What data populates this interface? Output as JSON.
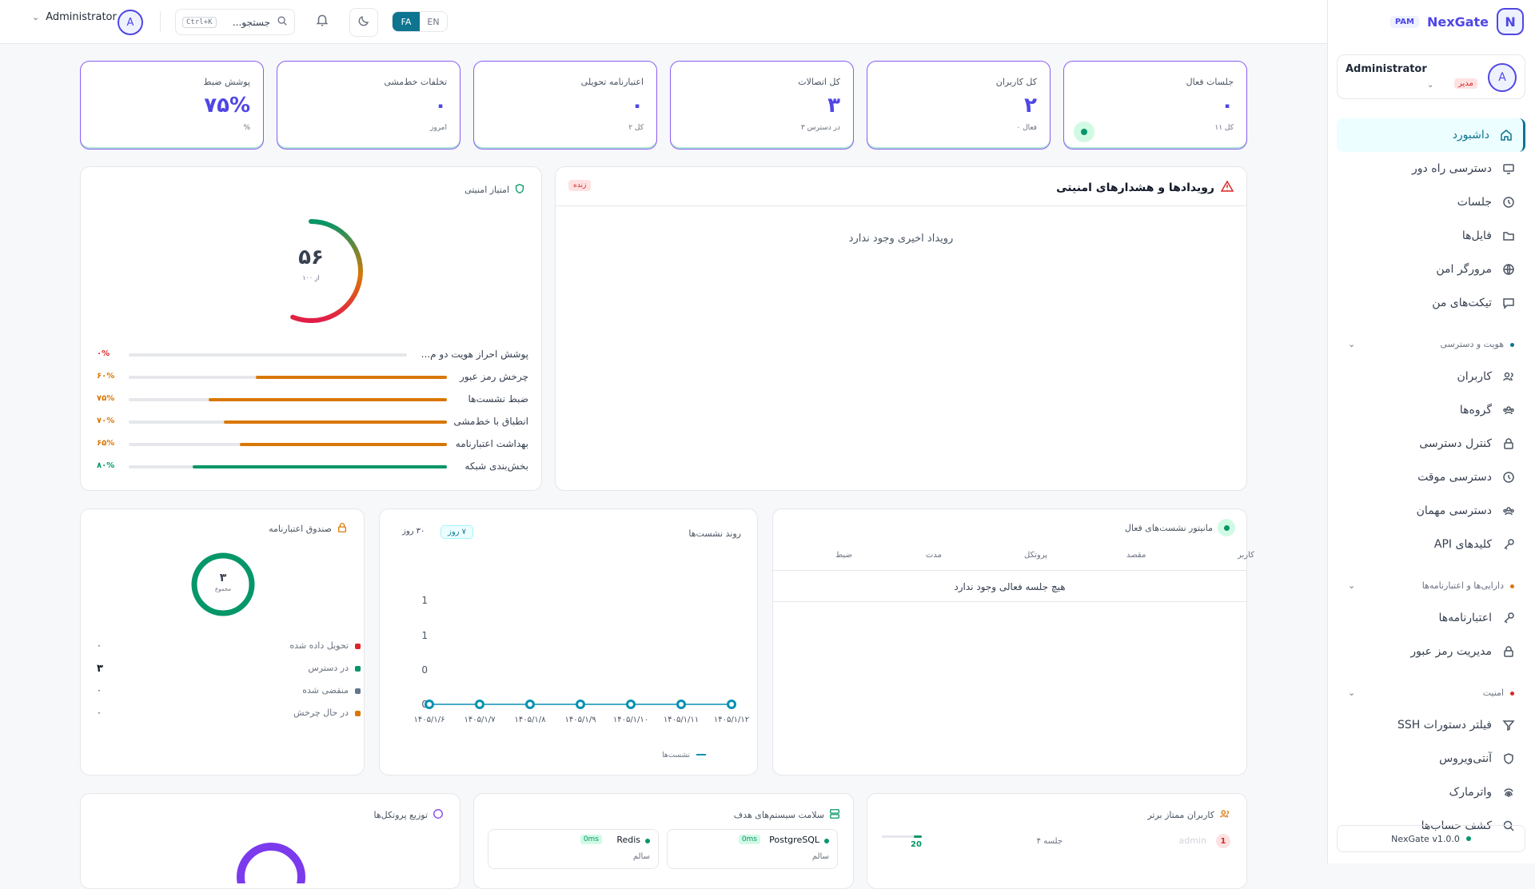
{
  "brand": {
    "name": "NexGate",
    "badge": "PAM",
    "logo_letter": "N"
  },
  "sidebar_user": {
    "name": "Administrator",
    "role": "مدیر",
    "avatar_letter": "A"
  },
  "nav": {
    "dashboard": "داشبورد",
    "remote_access": "دسترسی راه دور",
    "sessions": "جلسات",
    "files": "فایل‌ها",
    "secure_browser": "مرورگر امن",
    "my_tickets": "تیکت‌های من",
    "group_identity": "هویت و دسترسی",
    "users": "کاربران",
    "groups": "گروه‌ها",
    "access_control": "کنترل دسترسی",
    "temp_access": "دسترسی موقت",
    "guest_access": "دسترسی مهمان",
    "api_keys": "کلیدهای API",
    "group_assets": "دارایی‌ها و اعتبارنامه‌ها",
    "credentials": "اعتبارنامه‌ها",
    "password_mgmt": "مدیریت رمز عبور",
    "group_security": "امنیت",
    "ssh_filter": "فیلتر دستورات SSH",
    "antivirus": "آنتی‌ویروس",
    "watermark": "واترمارک",
    "account_discovery": "کشف حساب‌ها"
  },
  "version": "NexGate v1.0.0",
  "topbar": {
    "username": "Administrator",
    "avatar_letter": "A",
    "search_placeholder": "جستجو...",
    "search_shortcut": "Ctrl+K",
    "lang_fa": "FA",
    "lang_en": "EN"
  },
  "stats": [
    {
      "label": "جلسات فعال",
      "value": "۰",
      "sub": "۱۱ کل"
    },
    {
      "label": "کل کاربران",
      "value": "۲",
      "sub": "۰ فعال"
    },
    {
      "label": "کل اتصالات",
      "value": "۳",
      "sub": "۳ در دسترس"
    },
    {
      "label": "اعتبارنامه تحویلی",
      "value": "۰",
      "sub": "۲ کل"
    },
    {
      "label": "تخلفات خط‌مشی",
      "value": "۰",
      "sub": "امروز"
    },
    {
      "label": "پوشش ضبط",
      "value": "۷۵%",
      "sub": "%"
    }
  ],
  "security_score": {
    "title": "امتیاز امنیتی",
    "score": "۵۶",
    "out_of": "از ۱۰۰",
    "score_value": 56,
    "items": [
      {
        "label": "پوشش احراز هویت دو م...",
        "pct": "۰%",
        "value": 0,
        "color": "#dc2626"
      },
      {
        "label": "چرخش رمز عبور",
        "pct": "۶۰%",
        "value": 60,
        "color": "#d97706"
      },
      {
        "label": "ضبط نشست‌ها",
        "pct": "۷۵%",
        "value": 75,
        "color": "#d97706"
      },
      {
        "label": "انطباق با خط‌مشی",
        "pct": "۷۰%",
        "value": 70,
        "color": "#d97706"
      },
      {
        "label": "بهداشت اعتبارنامه",
        "pct": "۶۵%",
        "value": 65,
        "color": "#d97706"
      },
      {
        "label": "بخش‌بندی شبکه",
        "pct": "۸۰%",
        "value": 80,
        "color": "#059669"
      }
    ]
  },
  "events": {
    "title": "رویدادها و هشدارهای امنیتی",
    "badge": "زنده",
    "empty": "رویداد اخیری وجود ندارد"
  },
  "active_sessions": {
    "title": "مانیتور نشست‌های فعال",
    "columns": [
      "کاربر",
      "مقصد",
      "پروتکل",
      "مدت",
      "ضبط"
    ],
    "empty": "هیچ جلسه فعالی وجود ندارد"
  },
  "session_trend": {
    "title": "روند نشست‌ها",
    "range_7": "۷ روز",
    "range_30": "۳۰ روز"
  },
  "chart_data": {
    "type": "line",
    "title": "روند نشست‌ها",
    "categories": [
      "۱۴۰۵/۱/۶",
      "۱۴۰۵/۱/۷",
      "۱۴۰۵/۱/۸",
      "۱۴۰۵/۱/۹",
      "۱۴۰۵/۱/۱۰",
      "۱۴۰۵/۱/۱۱",
      "۱۴۰۵/۱/۱۲"
    ],
    "series": [
      {
        "name": "نشست‌ها",
        "values": [
          0,
          0,
          0,
          0,
          0,
          0,
          0
        ],
        "color": "#0891b2"
      }
    ],
    "y_ticks": [
      "0",
      "0",
      "1",
      "1"
    ],
    "legend": "bottom"
  },
  "vault": {
    "title": "صندوق اعتبارنامه",
    "total": "۳",
    "total_label": "مجموع",
    "items": [
      {
        "label": "تحویل داده شده",
        "count": "۰",
        "color": "#dc2626"
      },
      {
        "label": "در دسترس",
        "count": "۳",
        "color": "#059669"
      },
      {
        "label": "منقضی شده",
        "count": "۰",
        "color": "#64748b"
      },
      {
        "label": "در حال چرخش",
        "count": "۰",
        "color": "#d97706"
      }
    ]
  },
  "top_users": {
    "title": "کاربران ممتاز برتر",
    "rank": "1",
    "user": "admin",
    "sessions": "جلسه ۴",
    "count": "20"
  },
  "health": {
    "title": "سلامت سیستم‌های هدف",
    "items": [
      {
        "name": "PostgreSQL",
        "latency": "0ms",
        "status": "سالم"
      },
      {
        "name": "Redis",
        "latency": "0ms",
        "status": "سالم"
      }
    ]
  },
  "protocols": {
    "title": "توزیع پروتکل‌ها"
  }
}
